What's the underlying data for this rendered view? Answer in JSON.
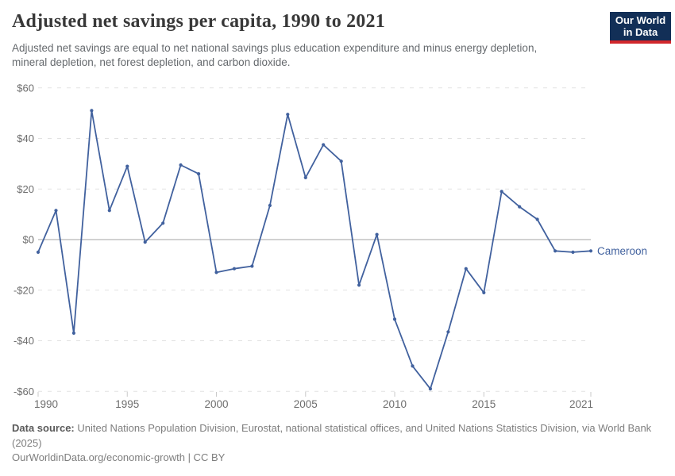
{
  "header": {
    "title": "Adjusted net savings per capita, 1990 to 2021",
    "subtitle_lines": [
      "Adjusted net savings are equal to net national savings plus education expenditure and minus energy depletion,",
      "mineral depletion, net forest depletion, and carbon dioxide."
    ],
    "logo": {
      "line1": "Our World",
      "line2": "in Data",
      "bg_color": "#122f57",
      "accent_color": "#d1272c"
    }
  },
  "chart_data": {
    "type": "line",
    "title": "Adjusted net savings per capita, 1990 to 2021",
    "xlabel": "",
    "ylabel": "",
    "xlim": [
      1990,
      2021
    ],
    "ylim": [
      -60,
      60
    ],
    "grid": "horizontal-dashed",
    "zero_line_solid": true,
    "legend_position": "end-of-line-label",
    "years": [
      1990,
      1991,
      1992,
      1993,
      1994,
      1995,
      1996,
      1997,
      1998,
      1999,
      2000,
      2001,
      2002,
      2003,
      2004,
      2005,
      2006,
      2007,
      2008,
      2009,
      2010,
      2011,
      2012,
      2013,
      2014,
      2015,
      2016,
      2017,
      2018,
      2019,
      2020,
      2021
    ],
    "series": [
      {
        "name": "Cameroon",
        "color": "#41619e",
        "values": [
          -5,
          11.5,
          -37,
          51,
          11.5,
          29,
          -1,
          6.5,
          29.5,
          26,
          -13,
          -11.5,
          -10.5,
          13.5,
          49.5,
          24.5,
          37.5,
          31,
          -18,
          2,
          -31.5,
          -50,
          -59,
          -36.5,
          -11.5,
          -21,
          19,
          13,
          8,
          -4.5,
          -5,
          -4.5
        ]
      }
    ],
    "y_ticks": [
      {
        "v": 60,
        "label": "$60"
      },
      {
        "v": 40,
        "label": "$40"
      },
      {
        "v": 20,
        "label": "$20"
      },
      {
        "v": 0,
        "label": "$0"
      },
      {
        "v": -20,
        "label": "-$20"
      },
      {
        "v": -40,
        "label": "-$40"
      },
      {
        "v": -60,
        "label": "-$60"
      }
    ],
    "x_ticks": [
      {
        "v": 1990,
        "label": "1990"
      },
      {
        "v": 1995,
        "label": "1995"
      },
      {
        "v": 2000,
        "label": "2000"
      },
      {
        "v": 2005,
        "label": "2005"
      },
      {
        "v": 2010,
        "label": "2010"
      },
      {
        "v": 2015,
        "label": "2015"
      },
      {
        "v": 2021,
        "label": "2021"
      }
    ]
  },
  "footer": {
    "source_label": "Data source:",
    "source_text": " United Nations Population Division, Eurostat, national statistical offices, and United Nations Statistics Division, via World Bank (2025)",
    "credit_line": "OurWorldinData.org/economic-growth | CC BY"
  }
}
